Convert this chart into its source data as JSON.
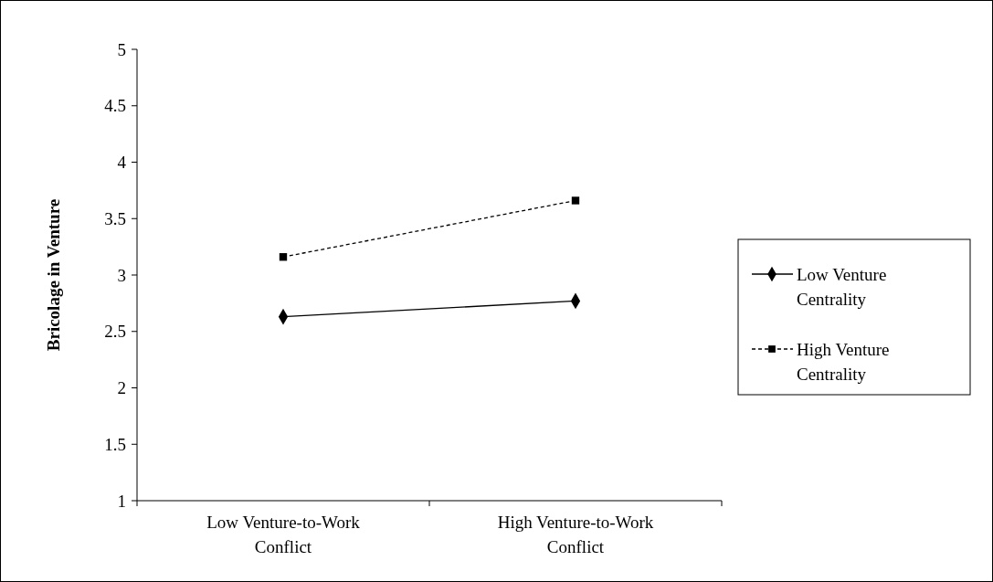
{
  "chart_data": {
    "type": "line",
    "ylabel": "Bricolage in Venture",
    "categories": [
      "Low Venture-to-Work Conflict",
      "High Venture-to-Work Conflict"
    ],
    "series": [
      {
        "name": "Low Venture Centrality",
        "color": "#000000",
        "values": [
          2.63,
          2.77
        ],
        "marker": "diamond",
        "line_style": "solid"
      },
      {
        "name": "High Venture Centrality",
        "color": "#000000",
        "values": [
          3.16,
          3.66
        ],
        "marker": "square",
        "line_style": "dashed"
      }
    ],
    "ylim": [
      1,
      5
    ],
    "yticks": [
      1,
      1.5,
      2,
      2.5,
      3,
      3.5,
      4,
      4.5,
      5
    ],
    "grid": false,
    "legend": "right"
  }
}
